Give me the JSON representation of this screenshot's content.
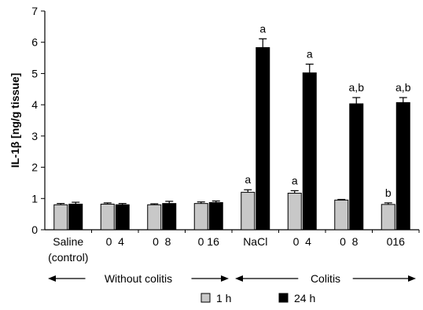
{
  "chart_data": {
    "type": "bar",
    "ylabel": "IL-1β [ng/g tissue]",
    "ylim": [
      0,
      7
    ],
    "yticks": [
      0,
      1,
      2,
      3,
      4,
      5,
      6,
      7
    ],
    "categories": [
      [
        "Saline",
        "(control)"
      ],
      [
        "0  4"
      ],
      [
        "0  8"
      ],
      [
        "0 16"
      ],
      [
        "NaCl"
      ],
      [
        "0  4"
      ],
      [
        "0  8"
      ],
      [
        "016"
      ]
    ],
    "series": [
      {
        "name": "1 h",
        "color": "#c8c8c8",
        "values": [
          0.8,
          0.82,
          0.8,
          0.84,
          1.2,
          1.17,
          0.95,
          0.81
        ],
        "errors": [
          0.04,
          0.04,
          0.03,
          0.05,
          0.08,
          0.08,
          0.02,
          0.05
        ],
        "annotations": [
          "",
          "",
          "",
          "",
          "a",
          "a",
          "",
          "b"
        ]
      },
      {
        "name": "24 h",
        "color": "#000000",
        "values": [
          0.82,
          0.8,
          0.84,
          0.87,
          5.83,
          5.02,
          4.03,
          4.07
        ],
        "errors": [
          0.06,
          0.04,
          0.07,
          0.05,
          0.28,
          0.28,
          0.2,
          0.16
        ],
        "annotations": [
          "",
          "",
          "",
          "",
          "a",
          "a",
          "a,b",
          "a,b"
        ]
      }
    ],
    "groups": [
      {
        "label": "Without colitis",
        "from": 0,
        "to": 3
      },
      {
        "label": "Colitis",
        "from": 4,
        "to": 7
      }
    ],
    "legend_position": "bottom",
    "grid": false
  }
}
